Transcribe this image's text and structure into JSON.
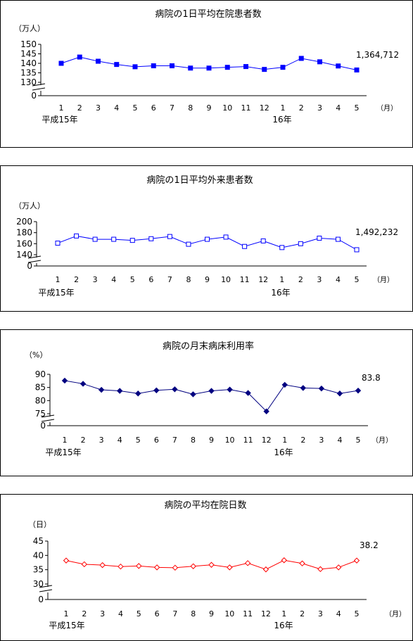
{
  "chart_data": [
    {
      "type": "line",
      "title": "病院の1日平均在院患者数",
      "ylabel": "（万人）",
      "xunit": "（月）",
      "categories": [
        "1",
        "2",
        "3",
        "4",
        "5",
        "6",
        "7",
        "8",
        "9",
        "10",
        "11",
        "12",
        "1",
        "2",
        "3",
        "4",
        "5"
      ],
      "year_labels": [
        {
          "index": 0,
          "text": "平成15年"
        },
        {
          "index": 12,
          "text": "16年"
        }
      ],
      "yticks": [
        150,
        145,
        140,
        135,
        130
      ],
      "ylim": [
        130,
        150
      ],
      "zero_label": "0",
      "axis_break": true,
      "series": [
        {
          "values": [
            140.0,
            143.3,
            141.1,
            139.4,
            138.2,
            138.7,
            138.7,
            137.5,
            137.5,
            137.9,
            138.3,
            136.8,
            137.9,
            142.6,
            140.8,
            138.6,
            136.5
          ],
          "color": "#0000ff",
          "marker": "square-filled"
        }
      ],
      "end_label": "1,364,712"
    },
    {
      "type": "line",
      "title": "病院の1日平均外来患者数",
      "ylabel": "（万人）",
      "xunit": "（月）",
      "categories": [
        "1",
        "2",
        "3",
        "4",
        "5",
        "6",
        "7",
        "8",
        "9",
        "10",
        "11",
        "12",
        "1",
        "2",
        "3",
        "4",
        "5"
      ],
      "year_labels": [
        {
          "index": 0,
          "text": "平成15年"
        },
        {
          "index": 12,
          "text": "16年"
        }
      ],
      "yticks": [
        200,
        180,
        160,
        140
      ],
      "ylim": [
        140,
        200
      ],
      "zero_label": "0",
      "axis_break": true,
      "series": [
        {
          "values": [
            161,
            174,
            168,
            168,
            166,
            169,
            173,
            159,
            168,
            172,
            155,
            165,
            153,
            160,
            170,
            168,
            149
          ],
          "color": "#0000ff",
          "marker": "square-open"
        }
      ],
      "end_label": "1,492,232"
    },
    {
      "type": "line",
      "title": "病院の月末病床利用率",
      "ylabel": "（%）",
      "xunit": "（月）",
      "categories": [
        "1",
        "2",
        "3",
        "4",
        "5",
        "6",
        "7",
        "8",
        "9",
        "10",
        "11",
        "12",
        "1",
        "2",
        "3",
        "4",
        "5"
      ],
      "year_labels": [
        {
          "index": 0,
          "text": "平成15年"
        },
        {
          "index": 12,
          "text": "16年"
        }
      ],
      "yticks": [
        90,
        85,
        80,
        75
      ],
      "ylim": [
        75,
        90
      ],
      "zero_label": "0",
      "axis_break": true,
      "series": [
        {
          "values": [
            87.6,
            86.4,
            84.1,
            83.7,
            82.7,
            83.9,
            84.3,
            82.4,
            83.7,
            84.2,
            82.9,
            75.9,
            86.0,
            84.8,
            84.6,
            82.7,
            83.8
          ],
          "color": "#000080",
          "marker": "diamond-filled"
        }
      ],
      "end_label": "83.8"
    },
    {
      "type": "line",
      "title": "病院の平均在院日数",
      "ylabel": "（日）",
      "xunit": "（月）",
      "categories": [
        "1",
        "2",
        "3",
        "4",
        "5",
        "6",
        "7",
        "8",
        "9",
        "10",
        "11",
        "12",
        "1",
        "2",
        "3",
        "4",
        "5"
      ],
      "year_labels": [
        {
          "index": 0,
          "text": "平成15年"
        },
        {
          "index": 12,
          "text": "16年"
        }
      ],
      "yticks": [
        45,
        40,
        35,
        30
      ],
      "ylim": [
        30,
        45
      ],
      "zero_label": "0",
      "axis_break": true,
      "series": [
        {
          "values": [
            38.2,
            36.9,
            36.6,
            36.1,
            36.3,
            35.8,
            35.7,
            36.2,
            36.7,
            35.8,
            37.3,
            35.1,
            38.3,
            37.2,
            35.2,
            35.8,
            38.2
          ],
          "color": "#ff0000",
          "marker": "diamond-open"
        }
      ],
      "end_label": "38.2"
    }
  ]
}
